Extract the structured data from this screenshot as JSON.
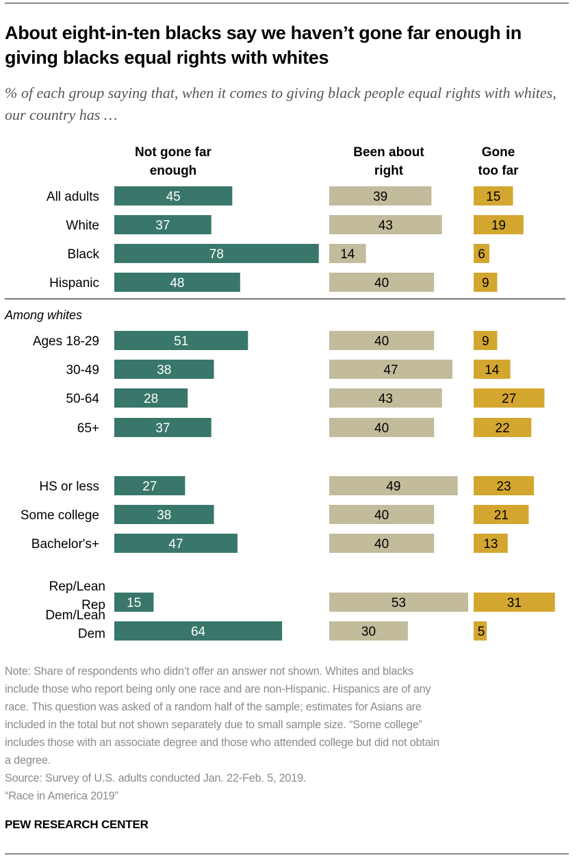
{
  "title": "About eight-in-ten blacks say we haven’t gone far enough in giving blacks equal rights with whites",
  "subtitle": "% of each group saying that, when it comes to giving black people equal rights with whites, our country has …",
  "colors": {
    "not_far_enough": "#38776a",
    "about_right": "#c2bb9c",
    "too_far": "#d3a62f"
  },
  "chart_data": {
    "type": "bar",
    "orientation": "horizontal",
    "series": [
      {
        "name": "Not gone far enough",
        "values": [
          45,
          37,
          78,
          48,
          51,
          38,
          28,
          37,
          27,
          38,
          47,
          15,
          64
        ]
      },
      {
        "name": "Been about right",
        "values": [
          39,
          43,
          14,
          40,
          40,
          47,
          43,
          40,
          49,
          40,
          40,
          53,
          30
        ]
      },
      {
        "name": "Gone too far",
        "values": [
          15,
          19,
          6,
          9,
          9,
          14,
          27,
          22,
          23,
          21,
          13,
          31,
          5
        ]
      }
    ],
    "series_headers": [
      [
        "Not gone far",
        "enough"
      ],
      [
        "Been about",
        "right"
      ],
      [
        "Gone",
        "too far"
      ]
    ],
    "categories": [
      [
        "All adults"
      ],
      [
        "White"
      ],
      [
        "Black"
      ],
      [
        "Hispanic"
      ],
      [
        "Ages 18-29"
      ],
      [
        "30-49"
      ],
      [
        "50-64"
      ],
      [
        "65+"
      ],
      [
        "HS or less"
      ],
      [
        "Some college"
      ],
      [
        "Bachelor's+"
      ],
      [
        "Rep/Lean",
        "Rep"
      ],
      [
        "Dem/Lean",
        "Dem"
      ]
    ],
    "group_label": "Among whites",
    "xlim": [
      0,
      100
    ],
    "grid": false,
    "legend": "column headers"
  },
  "notes": [
    "Note: Share of respondents who didn’t offer an answer not shown. Whites and blacks",
    "include those who report being only one race and are non-Hispanic. Hispanics are of any",
    "race. This question was asked of a random half of the sample; estimates for Asians are",
    "included in the total but not shown separately due to small sample size. “Some college”",
    "includes those with an associate degree and those who attended college but did not obtain",
    "a degree.",
    "Source: Survey of U.S. adults conducted Jan. 22-Feb. 5, 2019.",
    "“Race in America 2019”"
  ],
  "brand": "PEW RESEARCH CENTER"
}
